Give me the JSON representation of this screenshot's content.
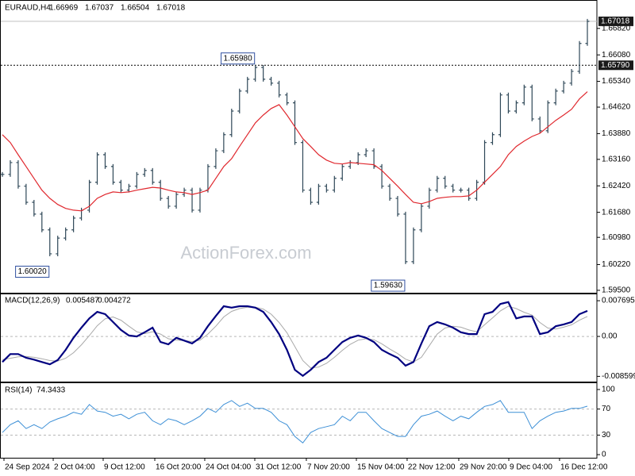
{
  "chart_data": [
    {
      "type": "ohlc",
      "symbol": "EURAUD,H4",
      "open": 1.66969,
      "high": 1.67037,
      "low": 1.66504,
      "close": 1.67018,
      "watermark": "ActionForex.com",
      "xlim": [
        0,
        74
      ],
      "ylim": [
        1.5941,
        1.6757
      ],
      "yticks": [
        {
          "value": 1.6682,
          "label": "1.66820"
        },
        {
          "value": 1.6608,
          "label": "1.66080"
        },
        {
          "value": 1.6534,
          "label": "1.65340"
        },
        {
          "value": 1.6462,
          "label": "1.64620"
        },
        {
          "value": 1.6388,
          "label": "1.63880"
        },
        {
          "value": 1.6316,
          "label": "1.63160"
        },
        {
          "value": 1.6242,
          "label": "1.62420"
        },
        {
          "value": 1.6168,
          "label": "1.61680"
        },
        {
          "value": 1.6098,
          "label": "1.60980"
        },
        {
          "value": 1.6022,
          "label": "1.60220"
        },
        {
          "value": 1.595,
          "label": "1.59500"
        }
      ],
      "levels": [
        {
          "value": 1.6579,
          "label": "1.65790"
        }
      ],
      "annotations": [
        {
          "value": 1.6598,
          "label": "1.65980",
          "x": 32
        },
        {
          "value": 1.6002,
          "label": "1.60020",
          "x": 6
        },
        {
          "value": 1.5963,
          "label": "1.59630",
          "x": 51
        }
      ],
      "series": [
        {
          "color": "#2f4858",
          "values": [
            1.6274,
            1.6307,
            1.6241,
            1.6196,
            1.6163,
            1.6119,
            1.6052,
            1.6096,
            1.6119,
            1.6152,
            1.6174,
            1.6252,
            1.6329,
            1.6296,
            1.6252,
            1.623,
            1.6241,
            1.6274,
            1.6285,
            1.6252,
            1.6207,
            1.6185,
            1.6218,
            1.623,
            1.6174,
            1.623,
            1.6296,
            1.634,
            1.6385,
            1.6451,
            1.6507,
            1.654,
            1.6573,
            1.654,
            1.6529,
            1.6496,
            1.6474,
            1.6363,
            1.623,
            1.6196,
            1.6241,
            1.623,
            1.6263,
            1.6296,
            1.6307,
            1.6329,
            1.634,
            1.6296,
            1.6241,
            1.6207,
            1.6163,
            1.603,
            1.6119,
            1.6185,
            1.623,
            1.6263,
            1.6241,
            1.623,
            1.623,
            1.6207,
            1.6252,
            1.6363,
            1.6385,
            1.6496,
            1.6451,
            1.6474,
            1.6518,
            1.6429,
            1.6396,
            1.6474,
            1.6507,
            1.6529,
            1.6562,
            1.664,
            1.67018
          ]
        },
        {
          "color": "#e0282e",
          "values": [
            1.6385,
            1.6363,
            1.6329,
            1.6296,
            1.6263,
            1.623,
            1.6207,
            1.619,
            1.6179,
            1.6174,
            1.6172,
            1.6185,
            1.6207,
            1.6218,
            1.6225,
            1.6223,
            1.6225,
            1.623,
            1.6234,
            1.6238,
            1.6236,
            1.623,
            1.6225,
            1.6223,
            1.6218,
            1.6223,
            1.623,
            1.6263,
            1.6296,
            1.6318,
            1.6352,
            1.6385,
            1.6418,
            1.644,
            1.6458,
            1.6469,
            1.644,
            1.6407,
            1.6374,
            1.6352,
            1.6329,
            1.6314,
            1.6305,
            1.6303,
            1.6307,
            1.6305,
            1.6303,
            1.6301,
            1.6285,
            1.6263,
            1.6241,
            1.6218,
            1.6196,
            1.6192,
            1.6198,
            1.6207,
            1.621,
            1.6212,
            1.6212,
            1.6214,
            1.623,
            1.6252,
            1.6274,
            1.6296,
            1.6329,
            1.6352,
            1.6367,
            1.638,
            1.6389,
            1.6407,
            1.6425,
            1.644,
            1.6456,
            1.6485,
            1.6505
          ]
        }
      ]
    },
    {
      "type": "macd",
      "label": "MACD(12,26,9)",
      "macd_value": 0.005487,
      "signal_value": 0.004272,
      "xlim": [
        0,
        74
      ],
      "ylim": [
        -0.0099,
        0.0089
      ],
      "yticks": [
        0.007695,
        {
          "value": 0,
          "label": "0.00"
        },
        -0.008599
      ],
      "series": [
        {
          "color": "#000080",
          "values": [
            -0.0055,
            -0.0038,
            -0.0038,
            -0.0046,
            -0.005,
            -0.0055,
            -0.006,
            -0.0051,
            -0.0029,
            -0.0003,
            0.0019,
            0.0039,
            0.0053,
            0.0048,
            0.0031,
            0.0014,
            0.0002,
            0,
            0.0009,
            0.0019,
            -0.0012,
            -0.0017,
            -0.0003,
            -0.0009,
            -0.0015,
            -0.0003,
            0.0022,
            0.0044,
            0.0065,
            0.0062,
            0.0065,
            0.0065,
            0.0062,
            0.0053,
            0.0031,
            0.0005,
            -0.0029,
            -0.0072,
            -0.0085,
            -0.0072,
            -0.0055,
            -0.0046,
            -0.0029,
            -0.0012,
            -0.0003,
            0.0002,
            -0.0003,
            -0.0012,
            -0.0029,
            -0.0038,
            -0.0046,
            -0.0063,
            -0.0055,
            -0.0015,
            0.0022,
            0.0031,
            0.0026,
            0.0019,
            0.0009,
            0.0005,
            0.0005,
            0.0048,
            0.0053,
            0.007,
            0.0074,
            0.0039,
            0.0043,
            0.0043,
            0.0005,
            0.0009,
            0.0022,
            0.0026,
            0.0031,
            0.0048,
            0.0055
          ]
        },
        {
          "color": "#a9a9a9",
          "values": [
            -0.005,
            -0.0047,
            -0.0044,
            -0.0043,
            -0.0045,
            -0.0048,
            -0.0052,
            -0.0053,
            -0.0047,
            -0.0035,
            -0.0018,
            0.0002,
            0.0023,
            0.0038,
            0.0042,
            0.0035,
            0.0022,
            0.001,
            0.0006,
            0.001,
            0.0005,
            -0.0005,
            -0.0008,
            -0.0009,
            -0.0011,
            -0.0008,
            0.0005,
            0.0022,
            0.0042,
            0.0054,
            0.006,
            0.0063,
            0.0063,
            0.0059,
            0.0048,
            0.003,
            0.0008,
            -0.0022,
            -0.0052,
            -0.0068,
            -0.0066,
            -0.0058,
            -0.0045,
            -0.003,
            -0.0017,
            -0.0008,
            -0.0005,
            -0.0007,
            -0.0016,
            -0.0027,
            -0.0037,
            -0.0049,
            -0.0055,
            -0.0045,
            -0.002,
            0.0005,
            0.0018,
            0.0022,
            0.002,
            0.0014,
            0.001,
            0.0025,
            0.004,
            0.0055,
            0.0065,
            0.006,
            0.0052,
            0.0046,
            0.003,
            0.0018,
            0.0016,
            0.002,
            0.0025,
            0.0035,
            0.0043
          ]
        }
      ]
    },
    {
      "type": "rsi",
      "label": "RSI(14)",
      "rsi_value": 74.3433,
      "xlim": [
        0,
        74
      ],
      "ylim": [
        -6,
        108.5
      ],
      "yticks": [
        100,
        70,
        30,
        0
      ],
      "xticks": [
        {
          "value": 0.2,
          "label": "24 Sep 2024"
        },
        {
          "value": 6.43,
          "label": "2 Oct 04:00"
        },
        {
          "value": 12.75,
          "label": "9 Oct 12:00"
        },
        {
          "value": 19.28,
          "label": "16 Oct 20:00"
        },
        {
          "value": 25.6,
          "label": "24 Oct 04:00"
        },
        {
          "value": 31.93,
          "label": "31 Oct 12:00"
        },
        {
          "value": 38.45,
          "label": "7 Nov 20:00"
        },
        {
          "value": 44.78,
          "label": "15 Nov 04:00"
        },
        {
          "value": 51.2,
          "label": "22 Nov 12:00"
        },
        {
          "value": 57.73,
          "label": "29 Nov 20:00"
        },
        {
          "value": 64.06,
          "label": "9 Dec 04:00"
        },
        {
          "value": 70.48,
          "label": "16 Dec 12:00"
        }
      ],
      "series": [
        {
          "color": "#3c8fd6",
          "values": [
            34,
            46,
            52,
            40,
            46,
            40,
            50,
            55,
            59,
            65,
            62,
            77,
            67,
            65,
            59,
            62,
            55,
            62,
            65,
            52,
            46,
            55,
            52,
            46,
            52,
            59,
            71,
            65,
            77,
            83,
            74,
            79,
            71,
            71,
            65,
            52,
            46,
            28,
            18,
            34,
            40,
            43,
            46,
            59,
            52,
            65,
            65,
            52,
            40,
            34,
            28,
            28,
            46,
            59,
            62,
            67,
            59,
            52,
            59,
            55,
            65,
            74,
            77,
            83,
            65,
            65,
            65,
            40,
            52,
            59,
            65,
            67,
            71,
            71,
            74.3433
          ]
        }
      ]
    }
  ]
}
